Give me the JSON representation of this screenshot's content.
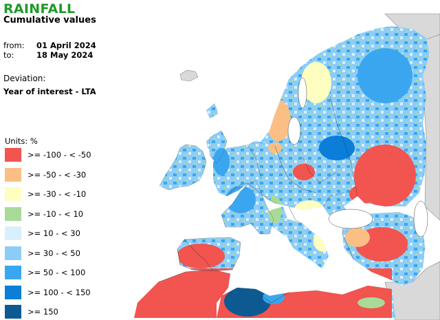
{
  "header": {
    "title": "RAINFALL",
    "subtitle": "Cumulative values",
    "from_label": "from:",
    "from_date": "01 April 2024",
    "to_label": "to:",
    "to_date": "18 May 2024",
    "deviation_label": "Deviation:",
    "deviation_value": "Year of interest - LTA"
  },
  "legend": {
    "units_label": "Units: %",
    "classes": [
      {
        "label": ">= -100 - < -50",
        "color": "#f2544f"
      },
      {
        "label": ">= -50 - < -30",
        "color": "#fbbf86"
      },
      {
        "label": ">= -30 - < -10",
        "color": "#fefec0"
      },
      {
        "label": ">= -10 - < 10",
        "color": "#a9da98"
      },
      {
        "label": ">= 10 - < 30",
        "color": "#d9effd"
      },
      {
        "label": ">= 30 - < 50",
        "color": "#8ccdf8"
      },
      {
        "label": ">= 50 - < 100",
        "color": "#3aa6f0"
      },
      {
        "label": ">= 100 - < 150",
        "color": "#0a7ed8"
      },
      {
        "label": ">= 150",
        "color": "#0d5a93"
      }
    ]
  },
  "map": {
    "region": "Europe and North Africa",
    "nodata_color": "#d9d9d9",
    "sea_color": "#ffffff",
    "border_color": "#333333"
  }
}
